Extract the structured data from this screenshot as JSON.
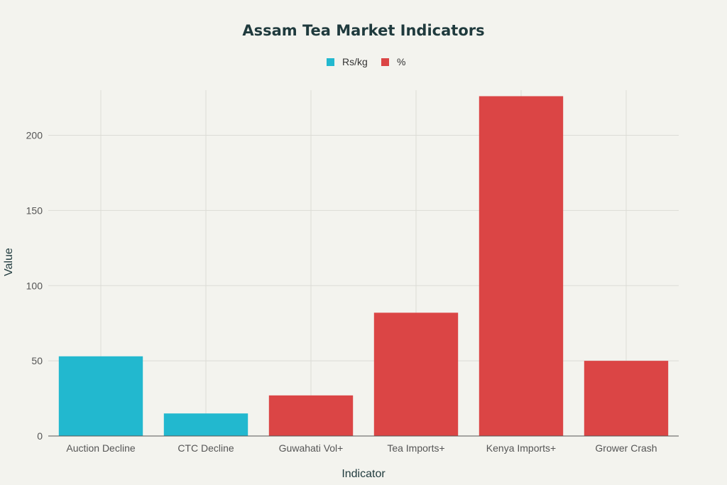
{
  "chart_data": {
    "type": "bar",
    "title": "Assam Tea Market Indicators",
    "xlabel": "Indicator",
    "ylabel": "Value",
    "ylim": [
      0,
      230
    ],
    "yticks": [
      0,
      50,
      100,
      150,
      200
    ],
    "grid": true,
    "legend_position": "top-center",
    "legend": [
      {
        "name": "Rs/kg",
        "color": "#22b8cf"
      },
      {
        "name": "%",
        "color": "#db4545"
      }
    ],
    "categories": [
      "Auction Decline",
      "CTC Decline",
      "Guwahati Vol+",
      "Tea Imports+",
      "Kenya Imports+",
      "Grower Crash"
    ],
    "values": [
      53,
      15,
      27,
      82,
      226,
      50
    ],
    "units": [
      "Rs/kg",
      "Rs/kg",
      "%",
      "%",
      "%",
      "%"
    ]
  }
}
